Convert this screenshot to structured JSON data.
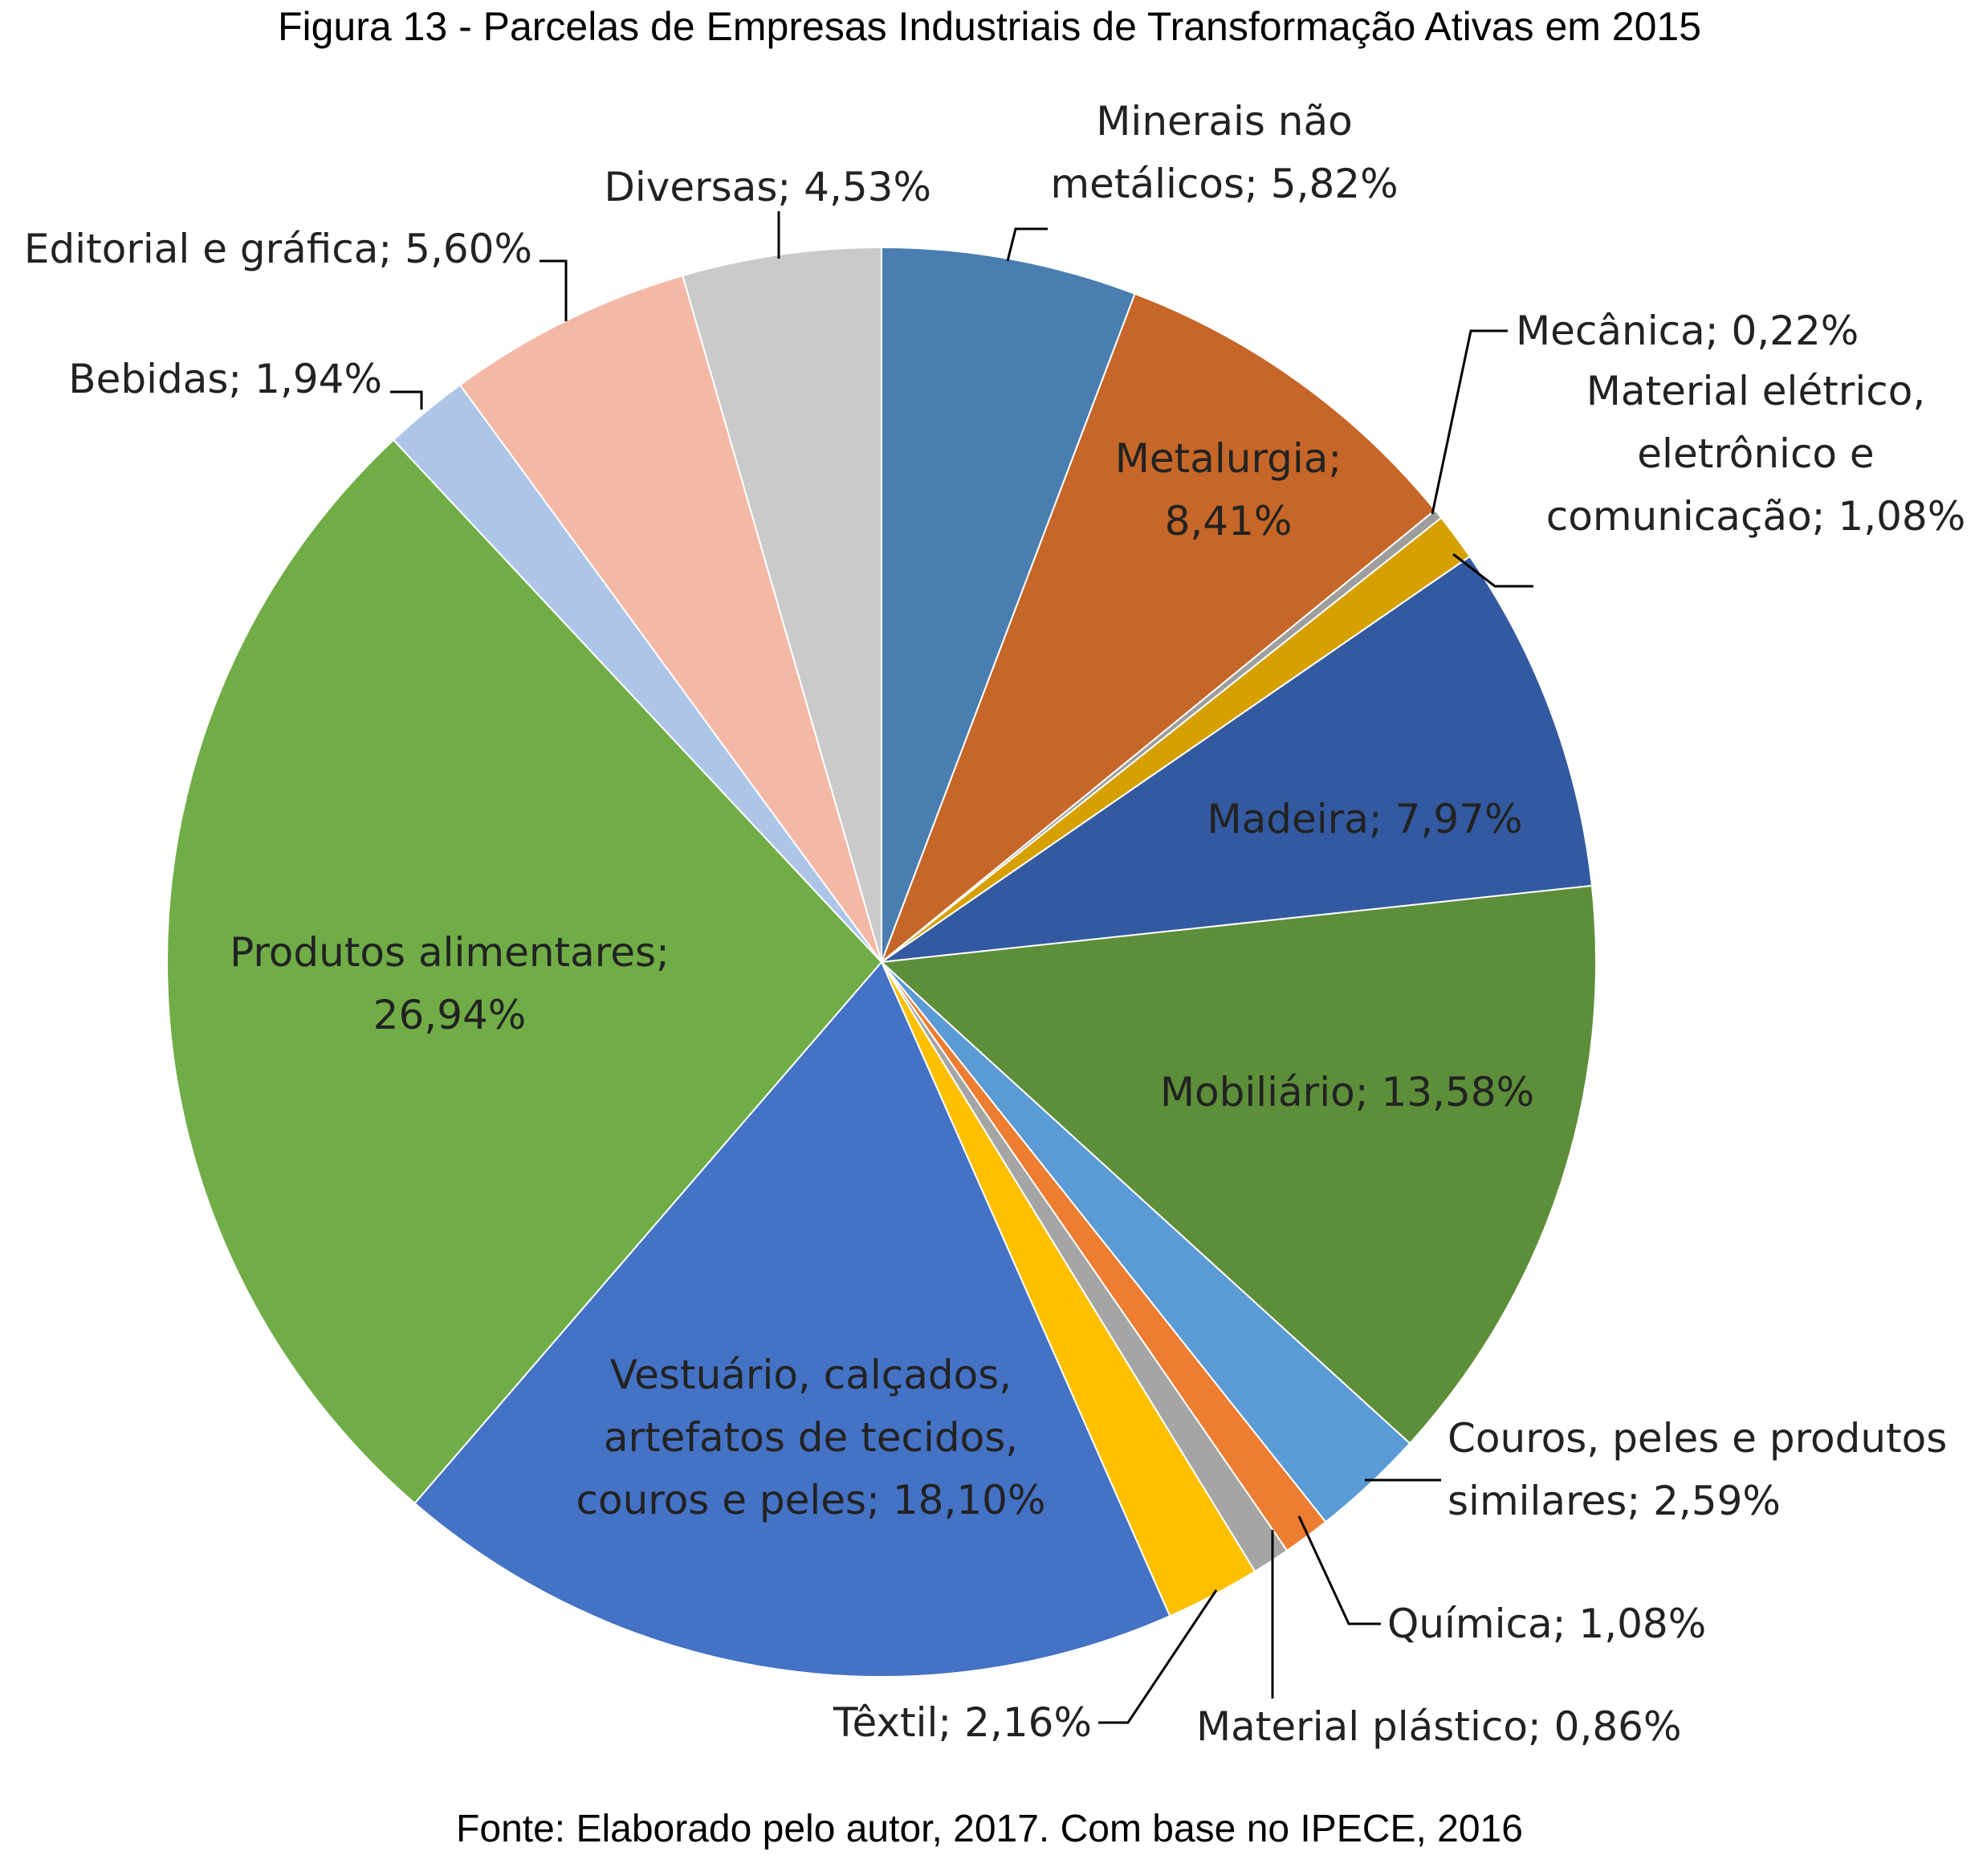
{
  "title": "Figura 13 - Parcelas de Empresas Industriais de Transformação Ativas em 2015",
  "source": "Fonte: Elaborado pelo autor, 2017. Com base no IPECE, 2016",
  "chart_data": {
    "type": "pie",
    "start": "12 o'clock",
    "direction": "clockwise",
    "legend": "none",
    "slices": [
      {
        "name": "Minerais não metálicos",
        "value": 5.82,
        "color": "#4a7eb0",
        "label_lines": [
          "Minerais não",
          "metálicos; 5,82%"
        ]
      },
      {
        "name": "Metalurgia",
        "value": 8.41,
        "color": "#c66628",
        "label_lines": [
          "Metalurgia;",
          "8,41%"
        ]
      },
      {
        "name": "Mecânica",
        "value": 0.22,
        "color": "#9e9e9e",
        "label_lines": [
          "Mecânica; 0,22%"
        ]
      },
      {
        "name": "Material elétrico, eletrônico e comunicação",
        "value": 1.08,
        "color": "#d6a100",
        "label_lines": [
          "Material elétrico,",
          "eletrônico e",
          "comunicação; 1,08%"
        ]
      },
      {
        "name": "Madeira",
        "value": 7.97,
        "color": "#335aa0",
        "label_lines": [
          "Madeira; 7,97%"
        ]
      },
      {
        "name": "Mobiliário",
        "value": 13.58,
        "color": "#5d8e39",
        "label_lines": [
          "Mobiliário; 13,58%"
        ]
      },
      {
        "name": "Couros, peles e produtos similares",
        "value": 2.59,
        "color": "#5b9bd5",
        "label_lines": [
          "Couros, peles e produtos",
          "similares; 2,59%"
        ]
      },
      {
        "name": "Química",
        "value": 1.08,
        "color": "#ed7d31",
        "label_lines": [
          "Química; 1,08%"
        ]
      },
      {
        "name": "Material plástico",
        "value": 0.86,
        "color": "#a5a5a5",
        "label_lines": [
          "Material plástico; 0,86%"
        ]
      },
      {
        "name": "Têxtil",
        "value": 2.16,
        "color": "#ffc000",
        "label_lines": [
          "Têxtil; 2,16%"
        ]
      },
      {
        "name": "Vestuário, calçados, artefatos de tecidos, couros e peles",
        "value": 18.1,
        "color": "#4472c4",
        "label_lines": [
          "Vestuário, calçados,",
          "artefatos de tecidos,",
          "couros e peles; 18,10%"
        ]
      },
      {
        "name": "Produtos alimentares",
        "value": 26.94,
        "color": "#70ad47",
        "label_lines": [
          "Produtos alimentares;",
          "26,94%"
        ]
      },
      {
        "name": "Bebidas",
        "value": 1.94,
        "color": "#adc5e7",
        "label_lines": [
          "Bebidas; 1,94%"
        ]
      },
      {
        "name": "Editorial e gráfica",
        "value": 5.6,
        "color": "#f4b9a6",
        "label_lines": [
          "Editorial e gráfica; 5,60%"
        ]
      },
      {
        "name": "Diversas",
        "value": 4.53,
        "color": "#cacaca",
        "label_lines": [
          "Diversas; 4,53%"
        ]
      }
    ]
  }
}
